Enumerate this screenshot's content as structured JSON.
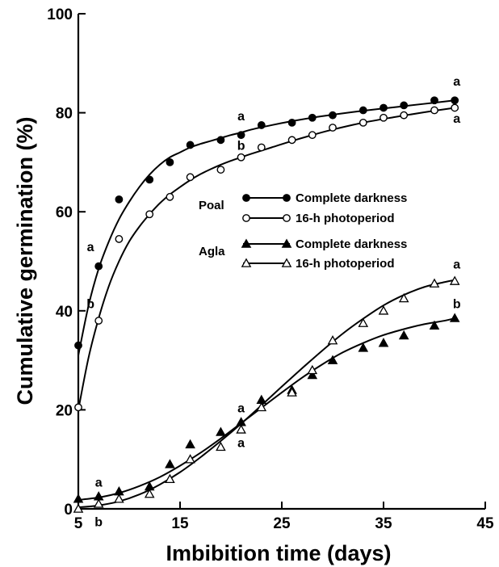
{
  "chart_data": {
    "type": "scatter",
    "title": "",
    "xlabel": "Imbibition time (days)",
    "ylabel": "Cumulative germination (%)",
    "xlim": [
      5,
      45
    ],
    "ylim": [
      0,
      100
    ],
    "xticks": [
      5,
      15,
      25,
      35,
      45
    ],
    "yticks": [
      0,
      20,
      40,
      60,
      80,
      100
    ],
    "grid": false,
    "legend_position": "center-right",
    "groups": [
      {
        "label": "Poal",
        "series_indices": [
          0,
          1
        ]
      },
      {
        "label": "Agla",
        "series_indices": [
          2,
          3
        ]
      }
    ],
    "series": [
      {
        "name": "Complete darkness",
        "marker": "filled-circle",
        "x": [
          5,
          7,
          9,
          12,
          14,
          16,
          19,
          21,
          23,
          26,
          28,
          30,
          33,
          35,
          37,
          40,
          42
        ],
        "y": [
          33,
          49,
          62.5,
          66.5,
          70,
          73.5,
          74.5,
          75.5,
          77.5,
          78,
          79,
          79.5,
          80.5,
          81,
          81.5,
          82.5,
          82.5
        ],
        "fit_x": [
          5,
          6,
          7,
          8,
          9,
          10,
          11,
          12,
          13,
          14,
          15,
          16,
          17,
          18,
          19,
          20,
          21,
          22,
          24,
          26,
          28,
          30,
          33,
          36,
          39,
          42
        ],
        "fit_y": [
          31,
          41,
          48.5,
          54,
          58.5,
          62,
          65,
          67.5,
          69.5,
          71,
          72,
          73,
          73.7,
          74.3,
          74.9,
          75.5,
          76,
          76.6,
          77.5,
          78.3,
          79,
          79.6,
          80.4,
          81.1,
          81.8,
          82.5
        ]
      },
      {
        "name": "16-h photoperiod",
        "marker": "open-circle",
        "x": [
          5,
          7,
          9,
          12,
          14,
          16,
          19,
          21,
          23,
          26,
          28,
          30,
          33,
          35,
          37,
          40,
          42
        ],
        "y": [
          20.5,
          38,
          54.5,
          59.5,
          63,
          67,
          68.5,
          71,
          73,
          74.5,
          75.5,
          77,
          78,
          79,
          79.5,
          80.5,
          81
        ],
        "fit_x": [
          5,
          6,
          7,
          8,
          9,
          10,
          11,
          12,
          13,
          14,
          15,
          16,
          17,
          18,
          19,
          20,
          21,
          22,
          24,
          26,
          28,
          30,
          33,
          36,
          39,
          42
        ],
        "fit_y": [
          20,
          30.5,
          38.5,
          45,
          50,
          54,
          57,
          59.5,
          61.7,
          63.5,
          65,
          66.4,
          67.6,
          68.6,
          69.5,
          70.3,
          71,
          71.7,
          73,
          74.3,
          75.5,
          76.6,
          78,
          79.1,
          80.1,
          81
        ]
      },
      {
        "name": "Complete darkness",
        "marker": "filled-triangle",
        "x": [
          5,
          7,
          9,
          12,
          14,
          16,
          19,
          21,
          23,
          26,
          28,
          30,
          33,
          35,
          37,
          40,
          42
        ],
        "y": [
          2,
          2.5,
          3.5,
          4.5,
          9,
          13,
          15.5,
          17.5,
          22,
          24,
          27,
          30,
          32.5,
          33.5,
          35,
          37,
          38.5
        ],
        "fit_x": [
          5,
          7,
          9,
          11,
          13,
          15,
          17,
          19,
          21,
          23,
          25,
          27,
          29,
          31,
          33,
          35,
          37,
          39,
          41,
          42
        ],
        "fit_y": [
          1.8,
          2.3,
          3.2,
          4.6,
          6.4,
          8.7,
          11.3,
          14.2,
          17.3,
          20.4,
          23.5,
          26.5,
          29.2,
          31.6,
          33.5,
          35.1,
          36.3,
          37.3,
          38,
          38.5
        ]
      },
      {
        "name": "16-h photoperiod",
        "marker": "open-triangle",
        "x": [
          5,
          7,
          9,
          12,
          14,
          16,
          19,
          21,
          23,
          26,
          28,
          30,
          33,
          35,
          37,
          40,
          42
        ],
        "y": [
          0,
          1,
          2,
          3,
          6,
          10,
          12.5,
          16,
          20.5,
          23.5,
          28,
          34,
          37.5,
          40,
          42.5,
          45.5,
          46
        ],
        "fit_x": [
          5,
          7,
          9,
          11,
          13,
          15,
          17,
          19,
          21,
          23,
          25,
          27,
          29,
          31,
          33,
          35,
          37,
          39,
          41,
          42
        ],
        "fit_y": [
          0.3,
          0.7,
          1.5,
          2.9,
          4.9,
          7.4,
          10.4,
          13.7,
          17.2,
          20.9,
          24.7,
          28.4,
          32,
          35.4,
          38.4,
          41.1,
          43.2,
          44.8,
          45.8,
          46.2
        ]
      }
    ],
    "annotations": [
      {
        "text": "a",
        "x": 6.2,
        "y": 52
      },
      {
        "text": "b",
        "x": 6.2,
        "y": 40.5
      },
      {
        "text": "a",
        "x": 21,
        "y": 78.5
      },
      {
        "text": "b",
        "x": 21,
        "y": 72.5
      },
      {
        "text": "a",
        "x": 42.2,
        "y": 85.5
      },
      {
        "text": "a",
        "x": 42.2,
        "y": 78
      },
      {
        "text": "a",
        "x": 7,
        "y": 4.5
      },
      {
        "text": "b",
        "x": 7,
        "y": -3.5
      },
      {
        "text": "a",
        "x": 21,
        "y": 19.5
      },
      {
        "text": "a",
        "x": 21,
        "y": 12.5
      },
      {
        "text": "a",
        "x": 42.2,
        "y": 48.5
      },
      {
        "text": "b",
        "x": 42.2,
        "y": 40.5
      }
    ]
  }
}
